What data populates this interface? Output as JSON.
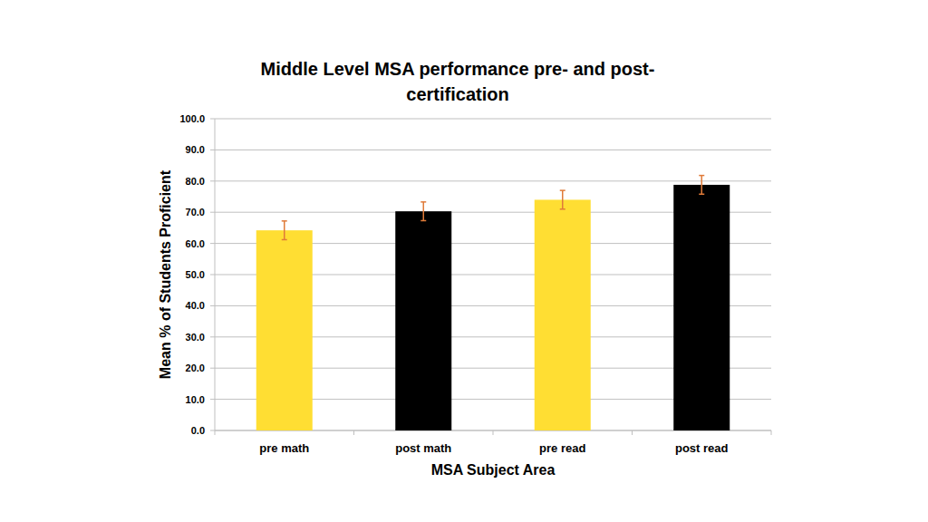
{
  "chart_data": {
    "type": "bar",
    "title": "Middle Level MSA performance pre- and post-certification",
    "x_label": "MSA Subject Area",
    "y_label": "Mean % of Students Proficient",
    "categories": [
      "pre math",
      "post math",
      "pre read",
      "post read"
    ],
    "values": [
      64.2,
      70.3,
      74.0,
      78.8
    ],
    "errors": [
      3.0,
      3.0,
      3.0,
      3.0
    ],
    "colors": [
      "#ffde33",
      "#000000",
      "#ffde33",
      "#000000"
    ],
    "ylim": [
      0,
      100
    ],
    "yticks": [
      {
        "value": 0,
        "label": "0.0"
      },
      {
        "value": 10,
        "label": "10.0"
      },
      {
        "value": 20,
        "label": "20.0"
      },
      {
        "value": 30,
        "label": "30.0"
      },
      {
        "value": 40,
        "label": "40.0"
      },
      {
        "value": 50,
        "label": "50.0"
      },
      {
        "value": 60,
        "label": "60.0"
      },
      {
        "value": 70,
        "label": "70.0"
      },
      {
        "value": 80,
        "label": "80.0"
      },
      {
        "value": 90,
        "label": "90.0"
      },
      {
        "value": 100,
        "label": "100.0"
      }
    ],
    "grid": true
  }
}
